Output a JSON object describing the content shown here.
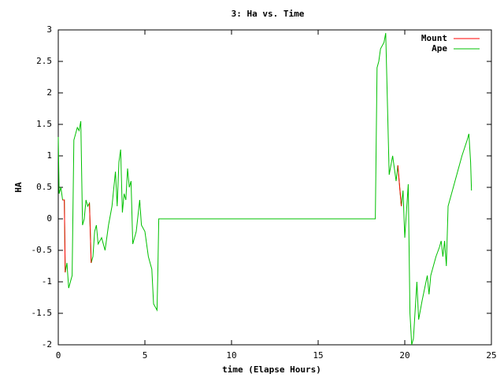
{
  "chart_data": {
    "type": "line",
    "title": "3: Ha vs. Time",
    "xlabel": "time (Elapse Hours)",
    "ylabel": "HA",
    "x": [
      0,
      0.05,
      0.15,
      0.25,
      0.35,
      0.4,
      0.5,
      0.6,
      0.8,
      0.9,
      1.0,
      1.1,
      1.2,
      1.3,
      1.4,
      1.5,
      1.6,
      1.7,
      1.8,
      1.9,
      2.0,
      2.1,
      2.2,
      2.3,
      2.5,
      2.7,
      2.9,
      3.1,
      3.3,
      3.4,
      3.5,
      3.6,
      3.7,
      3.8,
      3.9,
      4.0,
      4.1,
      4.2,
      4.3,
      4.5,
      4.7,
      4.8,
      5.0,
      5.2,
      5.4,
      5.5,
      5.6,
      5.7,
      5.75,
      5.8,
      18.3,
      18.4,
      18.5,
      18.6,
      18.8,
      18.9,
      19.1,
      19.3,
      19.5,
      19.6,
      19.8,
      19.9,
      20.0,
      20.2,
      20.3,
      20.4,
      20.5,
      20.7,
      20.8,
      21.0,
      21.3,
      21.4,
      21.5,
      21.8,
      22.0,
      22.1,
      22.2,
      22.3,
      22.4,
      22.5,
      22.7,
      23.0,
      23.3,
      23.6,
      23.7,
      23.8,
      23.85
    ],
    "series": [
      {
        "name": "Mount",
        "color": "#ff0000",
        "values": [
          null,
          null,
          null,
          0.3,
          0.3,
          -0.85,
          null,
          null,
          null,
          null,
          null,
          null,
          null,
          null,
          null,
          null,
          null,
          null,
          0.25,
          -0.7,
          null,
          null,
          null,
          null,
          null,
          null,
          null,
          null,
          null,
          null,
          null,
          null,
          null,
          null,
          null,
          null,
          null,
          null,
          null,
          null,
          null,
          null,
          null,
          null,
          null,
          null,
          null,
          null,
          null,
          null,
          null,
          null,
          null,
          null,
          null,
          null,
          null,
          null,
          null,
          0.85,
          0.2,
          null,
          null,
          null,
          null,
          null,
          null,
          null,
          null,
          null,
          null,
          null,
          null,
          null,
          null,
          null,
          null,
          null,
          null,
          null,
          null,
          null,
          null,
          null,
          null,
          null,
          null
        ]
      },
      {
        "name": "Ape",
        "color": "#00c000",
        "values": [
          1.3,
          0.4,
          0.5,
          0.3,
          0.3,
          -0.85,
          -0.7,
          -1.1,
          -0.9,
          1.25,
          1.35,
          1.45,
          1.4,
          1.55,
          -0.1,
          0.0,
          0.3,
          0.2,
          0.25,
          -0.7,
          -0.6,
          -0.2,
          -0.1,
          -0.4,
          -0.3,
          -0.5,
          -0.1,
          0.2,
          0.75,
          0.2,
          0.9,
          1.1,
          0.1,
          0.4,
          0.3,
          0.8,
          0.5,
          0.6,
          -0.4,
          -0.2,
          0.3,
          -0.1,
          -0.2,
          -0.6,
          -0.8,
          -1.35,
          -1.4,
          -1.45,
          -0.8,
          0,
          0,
          2.4,
          2.5,
          2.7,
          2.8,
          2.95,
          0.7,
          1.0,
          0.6,
          0.85,
          0.2,
          0.45,
          -0.3,
          0.55,
          -1.5,
          -2.0,
          -1.9,
          -1.0,
          -1.6,
          -1.3,
          -0.9,
          -1.2,
          -0.9,
          -0.6,
          -0.45,
          -0.35,
          -0.6,
          -0.35,
          -0.75,
          0.2,
          0.4,
          0.7,
          1.0,
          1.25,
          1.35,
          0.9,
          0.45
        ]
      }
    ],
    "xlim": [
      0,
      25
    ],
    "xticks": [
      0,
      5,
      10,
      15,
      20,
      25
    ],
    "ylim": [
      -2,
      3
    ],
    "yticks": [
      -2,
      -1.5,
      -1,
      -0.5,
      0,
      0.5,
      1,
      1.5,
      2,
      2.5,
      3
    ],
    "legend": "upper right",
    "grid": false
  }
}
